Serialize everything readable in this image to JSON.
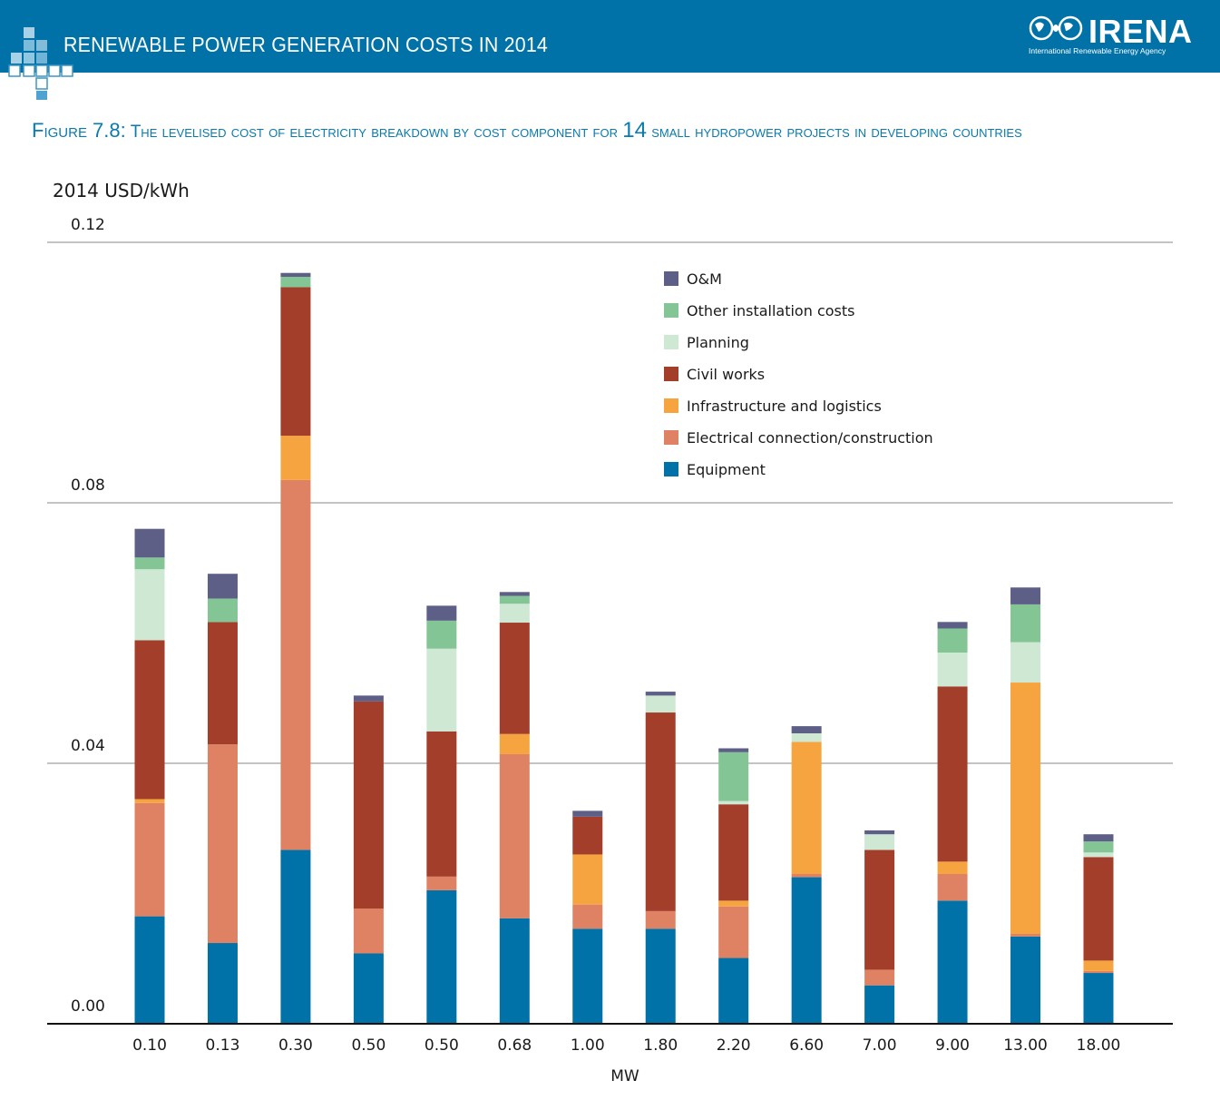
{
  "header": {
    "title": "RENEWABLE POWER GENERATION COSTS IN 2014",
    "logo": "IRENA",
    "logo_sub": "International Renewable Energy Agency"
  },
  "figure": {
    "title_prefix": "Figure 7.8:",
    "title_rest": " The levelised cost of electricity breakdown by cost component for ",
    "title_num": "14",
    "title_end": " small hydropower projects in developing countries"
  },
  "colors": {
    "header_bg": "#0072a8",
    "Equipment": "#0072a8",
    "Electrical connection/construction": "#de8263",
    "Infrastructure and logistics": "#f5a440",
    "Civil works": "#a33e2b",
    "Planning": "#cfe8d3",
    "Other installation costs": "#84c595",
    "O&M": "#5d5f87"
  },
  "chart_data": {
    "type": "bar",
    "stacked": true,
    "ylabel": "2014 USD/kWh",
    "xlabel": "MW",
    "ylim": [
      0,
      0.12
    ],
    "yticks": [
      "0.00",
      "0.04",
      "0.08",
      "0.12"
    ],
    "grid": true,
    "legend_position": "top-right",
    "categories": [
      "0.10",
      "0.13",
      "0.30",
      "0.50",
      "0.50",
      "0.68",
      "1.00",
      "1.80",
      "2.20",
      "6.60",
      "7.00",
      "9.00",
      "13.00",
      "18.00"
    ],
    "series": [
      {
        "name": "Equipment",
        "values": [
          0.0165,
          0.0124,
          0.0267,
          0.0108,
          0.0205,
          0.0162,
          0.0146,
          0.0146,
          0.0101,
          0.0225,
          0.0059,
          0.0189,
          0.0134,
          0.0078
        ]
      },
      {
        "name": "Electrical connection/construction",
        "values": [
          0.0174,
          0.0305,
          0.0568,
          0.0069,
          0.0021,
          0.0252,
          0.0037,
          0.0027,
          0.0079,
          0.0005,
          0.0024,
          0.0041,
          0.0004,
          0.0003
        ]
      },
      {
        "name": "Infrastructure and logistics",
        "values": [
          0.0006,
          0.0,
          0.0068,
          0.0,
          0.0,
          0.0031,
          0.0077,
          0.0,
          0.0009,
          0.0203,
          0.0,
          0.0019,
          0.0386,
          0.0016
        ]
      },
      {
        "name": "Civil works",
        "values": [
          0.0244,
          0.0188,
          0.0228,
          0.0318,
          0.0223,
          0.0171,
          0.0058,
          0.0305,
          0.0148,
          0.0,
          0.0184,
          0.0269,
          0.0,
          0.0159
        ]
      },
      {
        "name": "Planning",
        "values": [
          0.0109,
          0.0,
          0.0,
          0.0,
          0.0127,
          0.0029,
          0.0,
          0.0026,
          0.0005,
          0.0013,
          0.0024,
          0.0052,
          0.0062,
          0.0007
        ]
      },
      {
        "name": "Other installation costs",
        "values": [
          0.0018,
          0.0036,
          0.0016,
          0.0,
          0.0043,
          0.0012,
          0.0,
          0.0,
          0.0075,
          0.0,
          0.0,
          0.0037,
          0.0058,
          0.0017
        ]
      },
      {
        "name": "O&M",
        "values": [
          0.0044,
          0.0038,
          0.0006,
          0.0009,
          0.0023,
          0.0006,
          0.0009,
          0.0006,
          0.0006,
          0.0011,
          0.0006,
          0.001,
          0.0026,
          0.0011
        ]
      }
    ],
    "legend_order": [
      "O&M",
      "Other installation costs",
      "Planning",
      "Civil works",
      "Infrastructure and logistics",
      "Electrical connection/construction",
      "Equipment"
    ]
  }
}
